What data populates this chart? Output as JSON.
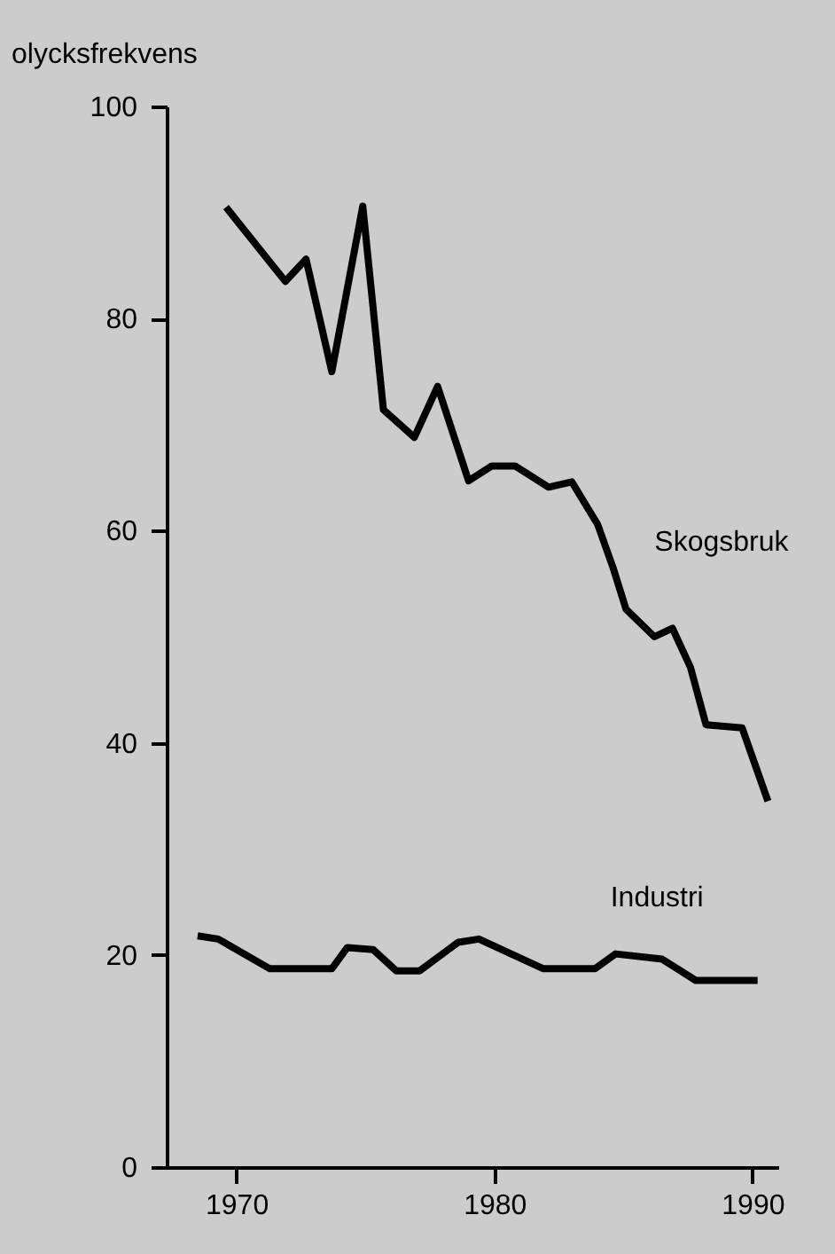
{
  "chart_data": {
    "type": "line",
    "ylabel": "olycksfrekvens",
    "xlim": [
      1967.3,
      1991
    ],
    "xticks": [
      1970,
      1980,
      1990
    ],
    "ylim": [
      0,
      100
    ],
    "yticks": [
      0,
      20,
      40,
      60,
      80,
      100
    ],
    "grid": false,
    "legend": false,
    "marker": "none",
    "line_style": "solid",
    "series": [
      {
        "name": "Skogsbruk",
        "color": "#000000",
        "x": [
          1969.6,
          1971.9,
          1972.7,
          1973.7,
          1974.9,
          1975.7,
          1976.9,
          1977.8,
          1979.0,
          1979.9,
          1980.8,
          1982.1,
          1983.0,
          1984.0,
          1984.6,
          1985.1,
          1986.2,
          1986.9,
          1987.6,
          1988.2,
          1989.6,
          1990.6
        ],
        "values": [
          90.5,
          83.5,
          85.6,
          75.0,
          90.6,
          71.4,
          68.8,
          73.6,
          64.7,
          66.1,
          66.1,
          64.1,
          64.6,
          60.6,
          56.5,
          52.6,
          50.0,
          50.8,
          47.1,
          41.7,
          41.4,
          34.5
        ]
      },
      {
        "name": "Industri",
        "color": "#000000",
        "x": [
          1968.5,
          1969.3,
          1971.3,
          1973.7,
          1974.3,
          1975.3,
          1976.2,
          1977.1,
          1978.6,
          1979.4,
          1981.9,
          1983.9,
          1984.7,
          1986.5,
          1987.8,
          1990.2
        ],
        "values": [
          21.8,
          21.5,
          18.7,
          18.7,
          20.7,
          20.5,
          18.5,
          18.5,
          21.2,
          21.5,
          18.7,
          18.7,
          20.1,
          19.6,
          17.6,
          17.6
        ]
      }
    ]
  }
}
